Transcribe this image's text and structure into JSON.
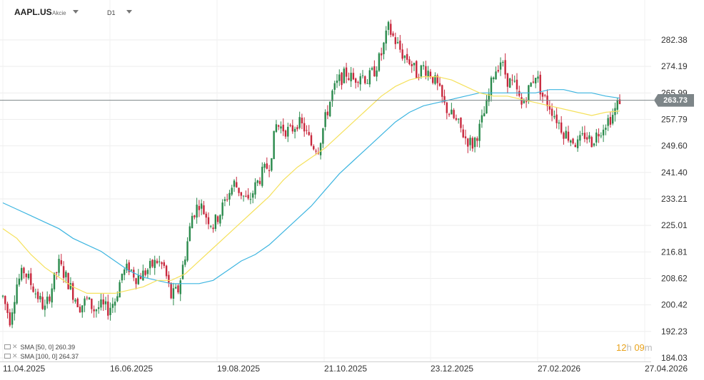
{
  "header": {
    "symbol": "AAPL.US",
    "symbol_type": "Akcie",
    "timeframe": "D1"
  },
  "indicators": [
    {
      "label": "SMA [50, 0] 260.39",
      "color": "#f5e15c"
    },
    {
      "label": "SMA [100, 0] 264.37",
      "color": "#3db5e0"
    }
  ],
  "timer": {
    "hours": "12",
    "h": "h",
    "minutes": "09",
    "m": "m"
  },
  "colors": {
    "up": "#2a8a4c",
    "down": "#c8283d",
    "sma50": "#f5e15c",
    "sma100": "#3db5e0",
    "price_line": "#7d8588"
  },
  "chart_data": {
    "type": "candlestick",
    "current_price": 263.73,
    "current_price_label": "263.73",
    "y_ticks": [
      "282.38",
      "274.19",
      "265.99",
      "257.79",
      "249.60",
      "241.40",
      "233.21",
      "225.01",
      "216.81",
      "208.62",
      "200.42",
      "192.23",
      "184.03"
    ],
    "ylim": [
      184.03,
      290.0
    ],
    "x_ticks": [
      "11.04.2025",
      "16.06.2025",
      "19.08.2025",
      "21.10.2025",
      "23.12.2025",
      "27.02.2026",
      "27.04.2026"
    ],
    "price_path": [
      [
        0,
        203
      ],
      [
        3,
        196
      ],
      [
        6,
        207
      ],
      [
        9,
        211
      ],
      [
        12,
        207
      ],
      [
        15,
        203
      ],
      [
        18,
        199
      ],
      [
        21,
        206
      ],
      [
        24,
        213
      ],
      [
        27,
        209
      ],
      [
        30,
        204
      ],
      [
        33,
        200
      ],
      [
        36,
        202
      ],
      [
        39,
        199
      ],
      [
        42,
        200
      ],
      [
        45,
        199
      ],
      [
        48,
        202
      ],
      [
        51,
        210
      ],
      [
        54,
        212
      ],
      [
        57,
        209
      ],
      [
        60,
        210
      ],
      [
        63,
        212
      ],
      [
        66,
        214
      ],
      [
        69,
        212
      ],
      [
        72,
        203
      ],
      [
        75,
        205
      ],
      [
        78,
        216
      ],
      [
        81,
        228
      ],
      [
        84,
        232
      ],
      [
        87,
        228
      ],
      [
        90,
        225
      ],
      [
        93,
        229
      ],
      [
        96,
        234
      ],
      [
        99,
        238
      ],
      [
        102,
        235
      ],
      [
        105,
        232
      ],
      [
        108,
        237
      ],
      [
        111,
        241
      ],
      [
        114,
        244
      ],
      [
        117,
        256
      ],
      [
        120,
        255
      ],
      [
        123,
        254
      ],
      [
        126,
        257
      ],
      [
        129,
        255
      ],
      [
        132,
        250
      ],
      [
        135,
        249
      ],
      [
        138,
        258
      ],
      [
        141,
        266
      ],
      [
        144,
        270
      ],
      [
        147,
        272
      ],
      [
        150,
        270
      ],
      [
        153,
        272
      ],
      [
        156,
        270
      ],
      [
        159,
        273
      ],
      [
        162,
        278
      ],
      [
        165,
        286
      ],
      [
        168,
        282
      ],
      [
        171,
        278
      ],
      [
        174,
        276
      ],
      [
        177,
        272
      ],
      [
        180,
        274
      ],
      [
        183,
        272
      ],
      [
        186,
        268
      ],
      [
        189,
        262
      ],
      [
        192,
        259
      ],
      [
        195,
        256
      ],
      [
        198,
        252
      ],
      [
        201,
        250
      ],
      [
        204,
        255
      ],
      [
        207,
        262
      ],
      [
        210,
        272
      ],
      [
        213,
        276
      ],
      [
        216,
        270
      ],
      [
        219,
        268
      ],
      [
        222,
        262
      ],
      [
        225,
        267
      ],
      [
        228,
        272
      ],
      [
        231,
        265
      ],
      [
        234,
        262
      ],
      [
        237,
        258
      ],
      [
        240,
        254
      ],
      [
        243,
        252
      ],
      [
        246,
        250
      ],
      [
        249,
        253
      ],
      [
        252,
        251
      ],
      [
        255,
        254
      ],
      [
        258,
        257
      ],
      [
        261,
        259
      ],
      [
        264,
        264
      ]
    ],
    "sma50": [
      [
        0,
        224
      ],
      [
        6,
        221
      ],
      [
        12,
        216
      ],
      [
        18,
        212
      ],
      [
        24,
        209
      ],
      [
        30,
        206
      ],
      [
        36,
        204
      ],
      [
        42,
        204
      ],
      [
        48,
        204
      ],
      [
        54,
        205
      ],
      [
        60,
        206
      ],
      [
        66,
        208
      ],
      [
        72,
        208
      ],
      [
        78,
        210
      ],
      [
        84,
        214
      ],
      [
        90,
        218
      ],
      [
        96,
        222
      ],
      [
        102,
        226
      ],
      [
        108,
        230
      ],
      [
        114,
        234
      ],
      [
        120,
        239
      ],
      [
        126,
        243
      ],
      [
        132,
        246
      ],
      [
        138,
        249
      ],
      [
        144,
        253
      ],
      [
        150,
        257
      ],
      [
        156,
        261
      ],
      [
        162,
        265
      ],
      [
        168,
        268
      ],
      [
        174,
        270
      ],
      [
        180,
        271
      ],
      [
        186,
        271
      ],
      [
        192,
        270
      ],
      [
        198,
        268
      ],
      [
        204,
        266
      ],
      [
        210,
        265
      ],
      [
        216,
        265
      ],
      [
        222,
        264
      ],
      [
        228,
        263
      ],
      [
        234,
        262
      ],
      [
        240,
        261
      ],
      [
        246,
        260
      ],
      [
        252,
        259
      ],
      [
        258,
        260
      ],
      [
        264,
        260.39
      ]
    ],
    "sma100": [
      [
        0,
        232
      ],
      [
        6,
        230
      ],
      [
        12,
        228
      ],
      [
        18,
        226
      ],
      [
        24,
        224
      ],
      [
        30,
        221
      ],
      [
        36,
        219
      ],
      [
        42,
        217
      ],
      [
        48,
        214
      ],
      [
        54,
        211
      ],
      [
        60,
        209
      ],
      [
        66,
        208
      ],
      [
        72,
        207
      ],
      [
        78,
        207
      ],
      [
        84,
        207
      ],
      [
        90,
        208
      ],
      [
        96,
        211
      ],
      [
        102,
        214
      ],
      [
        108,
        216
      ],
      [
        114,
        219
      ],
      [
        120,
        223
      ],
      [
        126,
        227
      ],
      [
        132,
        231
      ],
      [
        138,
        236
      ],
      [
        144,
        241
      ],
      [
        150,
        245
      ],
      [
        156,
        249
      ],
      [
        162,
        253
      ],
      [
        168,
        257
      ],
      [
        174,
        260
      ],
      [
        180,
        262
      ],
      [
        186,
        263
      ],
      [
        192,
        264
      ],
      [
        198,
        265
      ],
      [
        204,
        266
      ],
      [
        210,
        266
      ],
      [
        216,
        266
      ],
      [
        222,
        266
      ],
      [
        228,
        266
      ],
      [
        234,
        267
      ],
      [
        240,
        267
      ],
      [
        246,
        266
      ],
      [
        252,
        266
      ],
      [
        258,
        265
      ],
      [
        264,
        264.37
      ]
    ]
  }
}
